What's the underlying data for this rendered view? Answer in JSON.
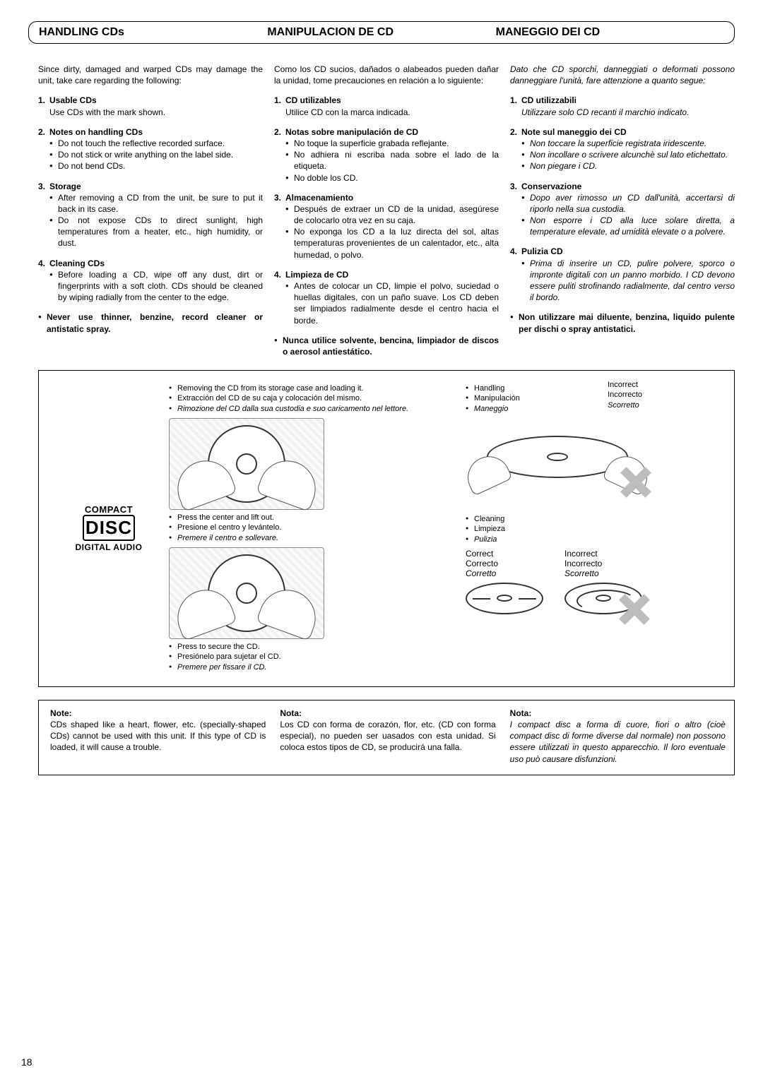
{
  "page_number": "18",
  "headers": {
    "en": "HANDLING CDs",
    "es": "MANIPULACION DE CD",
    "it": "MANEGGIO DEI CD"
  },
  "intro": {
    "en": "Since dirty, damaged and warped CDs may damage the unit, take care regarding the following:",
    "es": "Como los CD sucios, dañados o alabeados pueden dañar la unidad, tome precauciones en relación a lo siguiente:",
    "it": "Dato che CD sporchi, danneggiati o deformati possono danneggiare l'unità, fare attenzione a quanto segue:"
  },
  "sections": {
    "en": [
      {
        "n": "1.",
        "title": "Usable CDs",
        "body": "Use CDs with the mark shown."
      },
      {
        "n": "2.",
        "title": "Notes on handling CDs",
        "bullets": [
          "Do not touch the reflective recorded surface.",
          "Do not stick or write anything on the label side.",
          "Do not bend CDs."
        ]
      },
      {
        "n": "3.",
        "title": "Storage",
        "bullets": [
          "After removing a CD from the unit, be sure to put it back in its case.",
          "Do not expose CDs to direct sunlight, high temperatures from a heater, etc., high humidity, or dust."
        ]
      },
      {
        "n": "4.",
        "title": "Cleaning CDs",
        "bullets": [
          "Before loading a CD, wipe off any dust, dirt or fingerprints with a soft cloth. CDs should be cleaned by wiping radially from the center to the edge."
        ]
      }
    ],
    "es": [
      {
        "n": "1.",
        "title": "CD utilizables",
        "body": "Utilice CD con la marca indicada."
      },
      {
        "n": "2.",
        "title": "Notas sobre manipulación de CD",
        "bullets": [
          "No toque la superficie grabada reflejante.",
          "No adhiera ni escriba nada sobre el lado de la etiqueta.",
          "No doble los CD."
        ]
      },
      {
        "n": "3.",
        "title": "Almacenamiento",
        "bullets": [
          "Después de extraer un CD de la unidad, asegúrese de colocarlo otra vez en su caja.",
          "No exponga los CD a la luz directa del sol, altas temperaturas provenientes de un calentador, etc., alta humedad, o polvo."
        ]
      },
      {
        "n": "4.",
        "title": "Limpieza de CD",
        "bullets": [
          "Antes de colocar un CD, limpie el polvo, suciedad o huellas digitales, con un paño suave. Los CD deben ser limpiados radialmente desde el centro hacia el borde."
        ]
      }
    ],
    "it": [
      {
        "n": "1.",
        "title": "CD utilizzabili",
        "body": "Utilizzare solo CD recanti il marchio indicato."
      },
      {
        "n": "2.",
        "title": "Note sul maneggio dei CD",
        "bullets": [
          "Non toccare la superficie registrata iridescente.",
          "Non incollare o scrivere alcunchè sul lato etichettato.",
          "Non piegare i CD."
        ]
      },
      {
        "n": "3.",
        "title": "Conservazione",
        "bullets": [
          "Dopo aver rimosso un CD dall'unità, accertarsi di riporlo nella sua custodia.",
          "Non esporre i CD alla luce solare diretta, a temperature elevate, ad umidità elevate o a polvere."
        ]
      },
      {
        "n": "4.",
        "title": "Pulizia CD",
        "bullets": [
          "Prima di inserire un CD, pulire polvere, sporco o impronte digitali con un panno morbido. I CD devono essere puliti strofinando radialmente, dal centro verso il bordo."
        ]
      }
    ]
  },
  "never": {
    "en": "Never use thinner, benzine, record cleaner or antistatic spray.",
    "es": "Nunca utilice solvente, bencina, limpiador de discos o aerosol antiestático.",
    "it": "Non utilizzare mai diluente, benzina, liquido pulente per dischi o spray antistatici."
  },
  "diagram": {
    "logo": {
      "l1": "COMPACT",
      "l2": "DISC",
      "l3": "DIGITAL AUDIO"
    },
    "cap1": {
      "en": "Removing the CD from its storage case and loading it.",
      "es": "Extracción del CD de su caja y colocación del mismo.",
      "it": "Rimozione del CD dalla sua custodia e suo caricamento nel lettore."
    },
    "cap2": {
      "en": "Press the center and lift out.",
      "es": "Presione el centro y levántelo.",
      "it": "Premere il centro e sollevare."
    },
    "cap3": {
      "en": "Press to secure the CD.",
      "es": "Presiónelo para sujetar el CD.",
      "it": "Premere per fissare il CD."
    },
    "handling": {
      "en": "Handling",
      "es": "Manipulación",
      "it": "Maneggio"
    },
    "cleaning": {
      "en": "Cleaning",
      "es": "Limpieza",
      "it": "Pulizia"
    },
    "correct": {
      "en": "Correct",
      "es": "Correcto",
      "it": "Corretto"
    },
    "incorrect": {
      "en": "Incorrect",
      "es": "Incorrecto",
      "it": "Scorretto"
    }
  },
  "note": {
    "hd": {
      "en": "Note:",
      "es": "Nota:",
      "it": "Nota:"
    },
    "en": "CDs shaped like a heart, flower, etc. (specially-shaped CDs) cannot be used with this unit. If this type of CD is loaded, it will cause a trouble.",
    "es": "Los CD con forma de corazón, flor, etc. (CD con forma especial), no pueden ser uasados con esta unidad. Si coloca estos tipos de CD, se producirá una falla.",
    "it": "I compact disc a forma di cuore, fiori o altro (cioè compact disc di forme diverse dal normale) non possono essere utilizzati in questo apparecchio. Il loro eventuale uso può causare disfunzioni."
  }
}
